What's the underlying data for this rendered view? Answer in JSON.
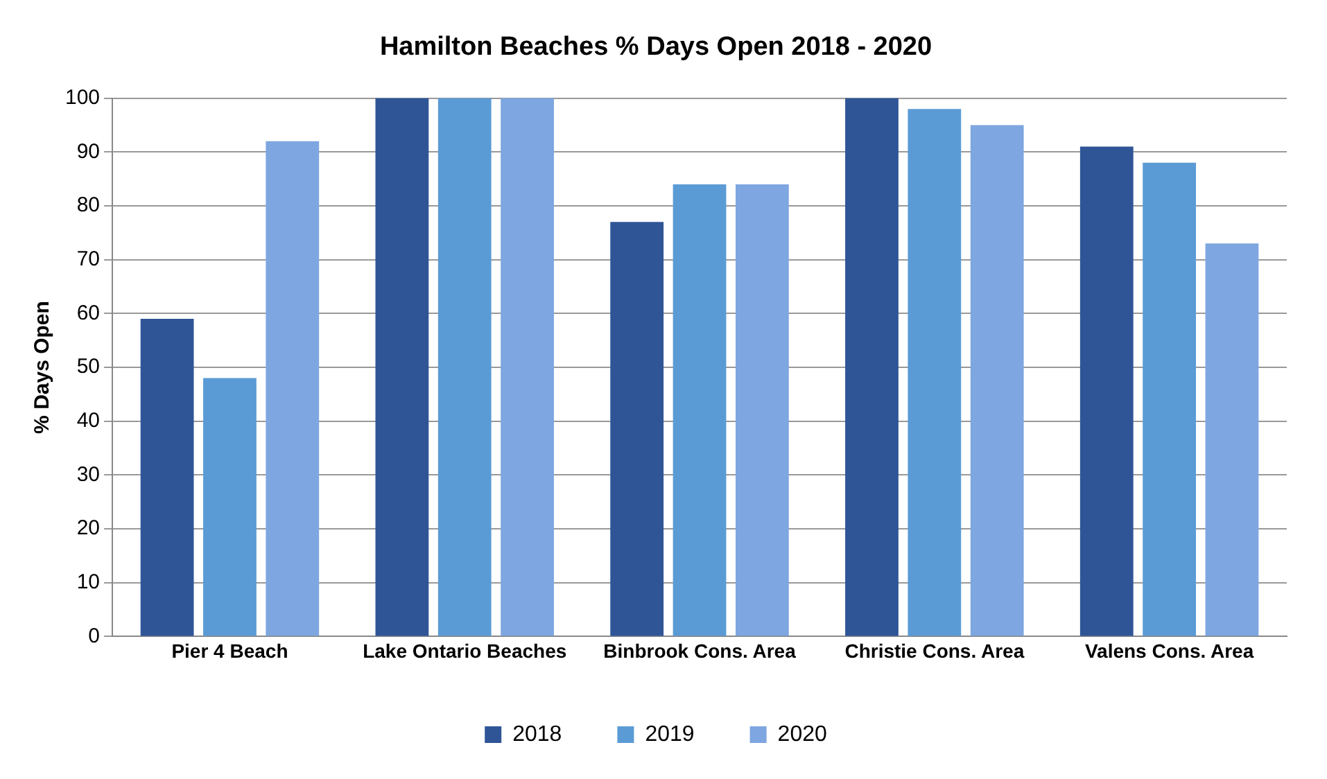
{
  "chart_data": {
    "type": "bar",
    "title": "Hamilton Beaches % Days Open 2018 - 2020",
    "ylabel": "% Days Open",
    "categories": [
      "Pier 4 Beach",
      "Lake Ontario Beaches",
      "Binbrook Cons. Area",
      "Christie Cons. Area",
      "Valens Cons. Area"
    ],
    "series": [
      {
        "name": "2018",
        "color": "#2f5597",
        "values": [
          59,
          100,
          77,
          100,
          91
        ]
      },
      {
        "name": "2019",
        "color": "#5b9bd5",
        "values": [
          48,
          100,
          84,
          98,
          88
        ]
      },
      {
        "name": "2020",
        "color": "#7ea6e0",
        "values": [
          92,
          100,
          84,
          95,
          73
        ]
      }
    ],
    "ylim": [
      0,
      100
    ],
    "yticks": [
      0,
      10,
      20,
      30,
      40,
      50,
      60,
      70,
      80,
      90,
      100
    ],
    "grid": "y",
    "legend": "bottom"
  }
}
